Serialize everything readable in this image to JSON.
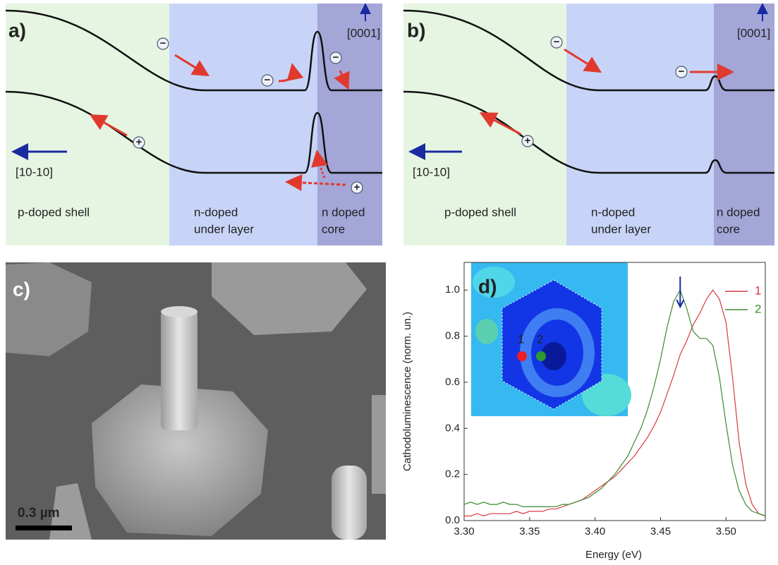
{
  "panel_a": {
    "label": "a)",
    "axis_up": "[0001]",
    "axis_left": "[10-10]",
    "regions": [
      [
        "p-doped shell"
      ],
      [
        "n-doped",
        "under layer"
      ],
      [
        "n doped",
        "core"
      ]
    ]
  },
  "panel_b": {
    "label": "b)",
    "axis_up": "[0001]",
    "axis_left": "[10-10]",
    "regions": [
      [
        "p-doped shell"
      ],
      [
        "n-doped",
        "under layer"
      ],
      [
        "n doped",
        "core"
      ]
    ]
  },
  "panel_c": {
    "label": "c)",
    "scale_bar": "0.3 µm"
  },
  "chart_data": {
    "type": "line",
    "label": "d)",
    "x_label": "Energy (eV)",
    "y_label": "Cathodoluminescence (norm. un.)",
    "x": [
      3.3,
      3.305,
      3.31,
      3.315,
      3.32,
      3.325,
      3.33,
      3.335,
      3.34,
      3.345,
      3.35,
      3.355,
      3.36,
      3.365,
      3.37,
      3.375,
      3.38,
      3.385,
      3.39,
      3.395,
      3.4,
      3.405,
      3.41,
      3.415,
      3.42,
      3.425,
      3.43,
      3.435,
      3.44,
      3.445,
      3.45,
      3.455,
      3.46,
      3.465,
      3.47,
      3.475,
      3.48,
      3.485,
      3.49,
      3.495,
      3.5,
      3.505,
      3.51,
      3.515,
      3.52,
      3.525,
      3.53
    ],
    "series": [
      {
        "name": "1",
        "color": "#d9393f",
        "values": [
          0.02,
          0.02,
          0.03,
          0.02,
          0.03,
          0.03,
          0.03,
          0.03,
          0.04,
          0.03,
          0.04,
          0.04,
          0.04,
          0.05,
          0.05,
          0.06,
          0.07,
          0.08,
          0.09,
          0.11,
          0.13,
          0.15,
          0.17,
          0.19,
          0.22,
          0.25,
          0.28,
          0.32,
          0.36,
          0.41,
          0.47,
          0.55,
          0.63,
          0.72,
          0.78,
          0.85,
          0.9,
          0.96,
          1.0,
          0.96,
          0.86,
          0.62,
          0.34,
          0.16,
          0.07,
          0.03,
          0.02
        ]
      },
      {
        "name": "2",
        "color": "#3a8a2e",
        "values": [
          0.07,
          0.08,
          0.07,
          0.08,
          0.07,
          0.07,
          0.08,
          0.07,
          0.07,
          0.06,
          0.06,
          0.06,
          0.06,
          0.06,
          0.06,
          0.07,
          0.07,
          0.08,
          0.09,
          0.1,
          0.12,
          0.14,
          0.17,
          0.2,
          0.24,
          0.28,
          0.34,
          0.4,
          0.48,
          0.58,
          0.7,
          0.84,
          0.95,
          1.0,
          0.92,
          0.82,
          0.79,
          0.79,
          0.76,
          0.62,
          0.42,
          0.24,
          0.13,
          0.07,
          0.04,
          0.03,
          0.02
        ]
      }
    ],
    "xlim": [
      3.3,
      3.53
    ],
    "xticks": [
      {
        "value": 3.3,
        "label": "3.30"
      },
      {
        "value": 3.35,
        "label": "3.35"
      },
      {
        "value": 3.4,
        "label": "3.40"
      },
      {
        "value": 3.45,
        "label": "3.45"
      },
      {
        "value": 3.5,
        "label": "3.50"
      }
    ],
    "ylim": [
      0,
      1.12
    ],
    "yticks": [
      {
        "value": 0,
        "label": "0.0"
      },
      0.2,
      0.4,
      0.6,
      0.8,
      {
        "value": 1,
        "label": "1.0"
      }
    ],
    "peak_arrow_x": 3.465,
    "inset_labels": [
      "1",
      "2"
    ]
  }
}
